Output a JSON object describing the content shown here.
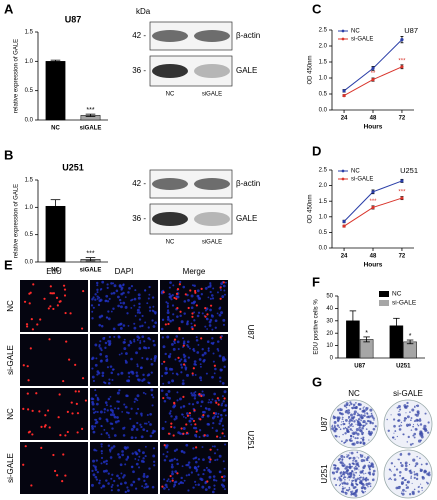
{
  "chart_data": [
    {
      "type": "bar",
      "panel": "A",
      "title": "U87",
      "ylabel": "relative expression of GALE",
      "categories": [
        "NC",
        "siGALE"
      ],
      "values": [
        1.0,
        0.08
      ],
      "errors": [
        0.02,
        0.02
      ],
      "significance": [
        null,
        "***"
      ],
      "colors": [
        "#000000",
        "#a6a6a6"
      ],
      "ylim": [
        0,
        1.5
      ],
      "yticks": [
        {
          "value": 0,
          "label": "0.0"
        },
        {
          "value": 0.5,
          "label": "0.5"
        },
        {
          "value": 1,
          "label": "1.0"
        },
        {
          "value": 1.5,
          "label": "1.5"
        }
      ]
    },
    {
      "type": "bar",
      "panel": "B",
      "title": "U251",
      "ylabel": "relative expression of GALE",
      "categories": [
        "NC",
        "siGALE"
      ],
      "values": [
        1.02,
        0.05
      ],
      "errors": [
        0.12,
        0.03
      ],
      "significance": [
        null,
        "***"
      ],
      "colors": [
        "#000000",
        "#a6a6a6"
      ],
      "ylim": [
        0,
        1.5
      ],
      "yticks": [
        {
          "value": 0,
          "label": "0.0"
        },
        {
          "value": 0.5,
          "label": "0.5"
        },
        {
          "value": 1,
          "label": "1.0"
        },
        {
          "value": 1.5,
          "label": "1.5"
        }
      ]
    },
    {
      "type": "line",
      "panel": "C",
      "title": "U87",
      "xlabel": "Hours",
      "ylabel": "OD 450nm",
      "x": [
        24,
        48,
        72
      ],
      "xlim": [
        14,
        82
      ],
      "xticks": [
        24,
        48,
        72
      ],
      "legend": "upper left",
      "series": [
        {
          "name": "NC",
          "color": "#2b3fa8",
          "values": [
            0.6,
            1.3,
            2.2
          ],
          "errors": [
            0.04,
            0.06,
            0.1
          ],
          "significance": [
            null,
            null,
            null
          ]
        },
        {
          "name": "si-GALE",
          "color": "#d9342b",
          "values": [
            0.45,
            0.95,
            1.35
          ],
          "errors": [
            0.03,
            0.05,
            0.06
          ],
          "significance": [
            null,
            "**",
            "***"
          ]
        }
      ],
      "ylim": [
        0,
        2.5
      ],
      "yticks": [
        {
          "value": 0,
          "label": "0.0"
        },
        {
          "value": 0.5,
          "label": "0.5"
        },
        {
          "value": 1,
          "label": "1.0"
        },
        {
          "value": 1.5,
          "label": "1.5"
        },
        {
          "value": 2,
          "label": "2.0"
        },
        {
          "value": 2.5,
          "label": "2.5"
        }
      ]
    },
    {
      "type": "line",
      "panel": "D",
      "title": "U251",
      "xlabel": "Hours",
      "ylabel": "OD 450nm",
      "x": [
        24,
        48,
        72
      ],
      "xlim": [
        14,
        82
      ],
      "xticks": [
        24,
        48,
        72
      ],
      "legend": "upper left",
      "series": [
        {
          "name": "NC",
          "color": "#2b3fa8",
          "values": [
            0.85,
            1.8,
            2.15
          ],
          "errors": [
            0.04,
            0.06,
            0.05
          ],
          "significance": [
            null,
            null,
            null
          ]
        },
        {
          "name": "si-GALE",
          "color": "#d9342b",
          "values": [
            0.7,
            1.3,
            1.6
          ],
          "errors": [
            0.03,
            0.05,
            0.05
          ],
          "significance": [
            null,
            "***",
            "***"
          ]
        }
      ],
      "ylim": [
        0,
        2.5
      ],
      "yticks": [
        {
          "value": 0,
          "label": "0.0"
        },
        {
          "value": 0.5,
          "label": "0.5"
        },
        {
          "value": 1,
          "label": "1.0"
        },
        {
          "value": 1.5,
          "label": "1.5"
        },
        {
          "value": 2,
          "label": "2.0"
        },
        {
          "value": 2.5,
          "label": "2.5"
        }
      ]
    },
    {
      "type": "bar",
      "panel": "F",
      "ylabel": "EDU positive cells %",
      "categories": [
        "U87",
        "U251"
      ],
      "legend": "upper right",
      "series": [
        {
          "name": "NC",
          "color": "#000000",
          "values": [
            30,
            26
          ],
          "errors": [
            8,
            6
          ],
          "significance": [
            null,
            null
          ]
        },
        {
          "name": "si-GALE",
          "color": "#a6a6a6",
          "values": [
            15,
            13
          ],
          "errors": [
            2,
            1.5
          ],
          "significance": [
            "*",
            "*"
          ]
        }
      ],
      "ylim": [
        0,
        50
      ],
      "yticks": [
        0,
        10,
        20,
        30,
        40,
        50
      ]
    }
  ],
  "blots": [
    {
      "panel": "A",
      "unit": "kDa",
      "markers": [
        "42 -",
        "36 -"
      ],
      "proteins": [
        "β-actin",
        "GALE"
      ],
      "lanes": [
        "NC",
        "siGALE"
      ]
    },
    {
      "panel": "B",
      "markers": [
        "42 -",
        "36 -"
      ],
      "proteins": [
        "β-actin",
        "GALE"
      ],
      "lanes": [
        "NC",
        "siGALE"
      ]
    }
  ],
  "edu_images": {
    "panel": "E",
    "columns": [
      "EdU",
      "DAPI",
      "Merge"
    ],
    "rows": [
      "NC",
      "si-GALE",
      "NC",
      "si-GALE"
    ],
    "groups": [
      "U87",
      "U251"
    ]
  },
  "colony_images": {
    "panel": "G",
    "columns": [
      "NC",
      "si-GALE"
    ],
    "rows": [
      "U87",
      "U251"
    ]
  }
}
